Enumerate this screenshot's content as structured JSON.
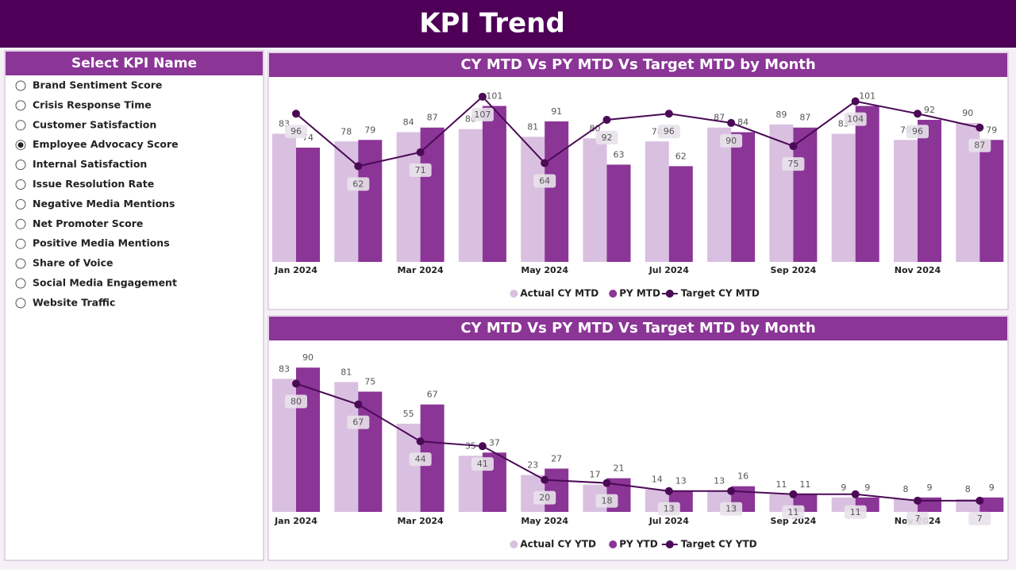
{
  "header": {
    "title": "KPI Trend"
  },
  "slicer": {
    "title": "Select KPI Name",
    "options": [
      "Brand Sentiment Score",
      "Crisis Response Time",
      "Customer Satisfaction",
      "Employee Advocacy Score",
      "Internal Satisfaction",
      "Issue Resolution Rate",
      "Negative Media Mentions",
      "Net Promoter Score",
      "Positive Media Mentions",
      "Share of Voice",
      "Social Media Engagement",
      "Website Traffic"
    ],
    "selected": 3
  },
  "chart_data": [
    {
      "type": "bar",
      "title": "CY MTD Vs PY MTD Vs Target MTD by Month",
      "categories": [
        "Jan 2024",
        null,
        "Mar 2024",
        null,
        "May 2024",
        null,
        "Jul 2024",
        null,
        "Sep 2024",
        null,
        "Nov 2024",
        null
      ],
      "series": [
        {
          "name": "Actual CY MTD",
          "type": "bar",
          "color": "#d9bfe0",
          "values": [
            83,
            78,
            84,
            86,
            81,
            80,
            78,
            87,
            89,
            83,
            79,
            90
          ]
        },
        {
          "name": "PY MTD",
          "type": "bar",
          "color": "#8b3597",
          "values": [
            74,
            79,
            87,
            101,
            91,
            63,
            62,
            84,
            87,
            101,
            92,
            79
          ]
        },
        {
          "name": "Target CY MTD",
          "type": "line",
          "color": "#4a0a55",
          "values": [
            96,
            62,
            71,
            107,
            64,
            92,
            96,
            90,
            75,
            104,
            96,
            87
          ]
        }
      ],
      "ylim": [
        0,
        110
      ],
      "legend": "bottom"
    },
    {
      "type": "bar",
      "title": "CY MTD Vs PY MTD Vs Target MTD by Month",
      "categories": [
        "Jan 2024",
        null,
        "Mar 2024",
        null,
        "May 2024",
        null,
        "Jul 2024",
        null,
        "Sep 2024",
        null,
        "Nov 2024",
        null
      ],
      "series": [
        {
          "name": "Actual CY YTD",
          "type": "bar",
          "color": "#d9bfe0",
          "values": [
            83,
            81,
            55,
            35,
            23,
            17,
            14,
            13,
            11,
            9,
            8,
            8
          ]
        },
        {
          "name": "PY YTD",
          "type": "bar",
          "color": "#8b3597",
          "values": [
            90,
            75,
            67,
            37,
            27,
            21,
            13,
            16,
            11,
            9,
            9,
            9
          ]
        },
        {
          "name": "Target CY YTD",
          "type": "line",
          "color": "#4a0a55",
          "values": [
            80,
            67,
            44,
            41,
            20,
            18,
            13,
            13,
            11,
            11,
            7,
            7
          ]
        }
      ],
      "ylim": [
        0,
        100
      ],
      "legend": "bottom"
    }
  ]
}
